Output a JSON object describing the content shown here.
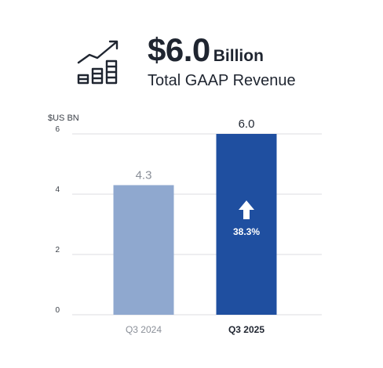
{
  "header": {
    "big_value": "$6.0",
    "unit": "Billion",
    "subtitle": "Total GAAP Revenue",
    "icon": "growth-chart-icon"
  },
  "chart_data": {
    "type": "bar",
    "ylabel": "$US BN",
    "ylim": [
      0,
      6
    ],
    "yticks": [
      0,
      2,
      4,
      6
    ],
    "grid": true,
    "categories": [
      "Q3 2024",
      "Q3 2025"
    ],
    "values": [
      4.3,
      6.0
    ],
    "value_labels": [
      "4.3",
      "6.0"
    ],
    "bar_colors": [
      "#8fa8cf",
      "#1f4fa0"
    ],
    "annotation": {
      "label": "38.3%",
      "icon": "up-arrow-icon",
      "category": "Q3 2025"
    }
  }
}
